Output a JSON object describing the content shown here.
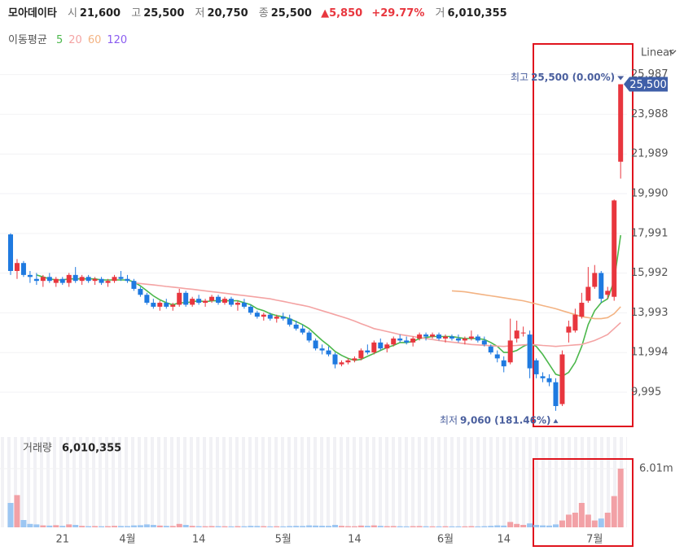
{
  "chart_data": {
    "type": "candlestick",
    "header": {
      "name": "모아데이타",
      "summary": [
        {
          "label": "시",
          "value": "21,600"
        },
        {
          "label": "고",
          "value": "25,500"
        },
        {
          "label": "저",
          "value": "20,750"
        },
        {
          "label": "종",
          "value": "25,500"
        }
      ],
      "change": "▲5,850",
      "change_pct": "+29.77%",
      "volume_summary": {
        "label": "거",
        "value": "6,010,355"
      }
    },
    "ma_label": "이동평균",
    "scale_label": "Linear",
    "last_price_label": "25,500",
    "high_annotation": {
      "label": "최고",
      "text": "25,500 (0.00%)"
    },
    "low_annotation": {
      "label": "최저",
      "text": "9,060 (181.46%)"
    },
    "up_color": "#e8363e",
    "down_color": "#1f7ae0",
    "volume_up_color": "#f2a1a6",
    "volume_down_color": "#9cc6f2",
    "grid": true,
    "categories": [
      null,
      null,
      null,
      null,
      null,
      null,
      null,
      null,
      "21",
      null,
      null,
      null,
      null,
      null,
      null,
      null,
      null,
      null,
      "4월",
      null,
      null,
      null,
      null,
      null,
      null,
      null,
      null,
      null,
      null,
      "14",
      null,
      null,
      null,
      null,
      null,
      null,
      null,
      null,
      null,
      null,
      null,
      null,
      "5월",
      null,
      null,
      null,
      null,
      null,
      null,
      null,
      null,
      null,
      null,
      "14",
      null,
      null,
      null,
      null,
      null,
      null,
      null,
      null,
      null,
      null,
      null,
      null,
      null,
      "6월",
      null,
      null,
      null,
      null,
      null,
      null,
      null,
      null,
      "14",
      null,
      null,
      null,
      null,
      null,
      null,
      null,
      null,
      null,
      null,
      null,
      null,
      null,
      "7월",
      null,
      null,
      null,
      null
    ],
    "ylim": [
      8234,
      26463
    ],
    "yticks": [
      {
        "value": 25987,
        "label": "25,987"
      },
      {
        "value": 23988,
        "label": "23,988"
      },
      {
        "value": 21989,
        "label": "21,989"
      },
      {
        "value": 19990,
        "label": "19,990"
      },
      {
        "value": 17991,
        "label": "17,991"
      },
      {
        "value": 15992,
        "label": "15,992"
      },
      {
        "value": 13993,
        "label": "13,993"
      },
      {
        "value": 11994,
        "label": "11,994"
      },
      {
        "value": 9995,
        "label": "9,995"
      }
    ],
    "ohlc": [
      [
        17940,
        18000,
        15900,
        16100
      ],
      [
        16100,
        16700,
        15700,
        16500
      ],
      [
        16500,
        16600,
        15800,
        15900
      ],
      [
        15900,
        16100,
        15500,
        15800
      ],
      [
        15700,
        16000,
        15400,
        15600
      ],
      [
        15600,
        15900,
        15300,
        15800
      ],
      [
        15800,
        16000,
        15500,
        15600
      ],
      [
        15500,
        15800,
        15300,
        15700
      ],
      [
        15700,
        15800,
        15400,
        15500
      ],
      [
        15500,
        16000,
        15300,
        15900
      ],
      [
        15900,
        16300,
        15500,
        15600
      ],
      [
        15600,
        15900,
        15400,
        15800
      ],
      [
        15800,
        15900,
        15500,
        15600
      ],
      [
        15600,
        15800,
        15400,
        15700
      ],
      [
        15700,
        15800,
        15400,
        15500
      ],
      [
        15500,
        15700,
        15300,
        15600
      ],
      [
        15600,
        15900,
        15500,
        15800
      ],
      [
        15800,
        16100,
        15600,
        15700
      ],
      [
        15700,
        15900,
        15500,
        15600
      ],
      [
        15600,
        15700,
        15100,
        15200
      ],
      [
        15200,
        15300,
        14800,
        14900
      ],
      [
        14900,
        15000,
        14400,
        14500
      ],
      [
        14500,
        14700,
        14200,
        14300
      ],
      [
        14300,
        14600,
        14100,
        14500
      ],
      [
        14500,
        14700,
        14200,
        14300
      ],
      [
        14300,
        14500,
        14100,
        14400
      ],
      [
        14400,
        15200,
        14300,
        15000
      ],
      [
        15000,
        15100,
        14300,
        14400
      ],
      [
        14400,
        14800,
        14300,
        14700
      ],
      [
        14700,
        14900,
        14400,
        14500
      ],
      [
        14500,
        14700,
        14300,
        14600
      ],
      [
        14600,
        14900,
        14500,
        14800
      ],
      [
        14800,
        14900,
        14400,
        14500
      ],
      [
        14500,
        14800,
        14400,
        14700
      ],
      [
        14700,
        14800,
        14300,
        14400
      ],
      [
        14400,
        14600,
        14100,
        14500
      ],
      [
        14500,
        14700,
        14200,
        14300
      ],
      [
        14300,
        14400,
        13900,
        14000
      ],
      [
        14000,
        14100,
        13700,
        13800
      ],
      [
        13800,
        14000,
        13600,
        13900
      ],
      [
        13900,
        14000,
        13600,
        13700
      ],
      [
        13700,
        13900,
        13500,
        13800
      ],
      [
        13800,
        14000,
        13600,
        13700
      ],
      [
        13700,
        13900,
        13300,
        13400
      ],
      [
        13400,
        13600,
        13100,
        13200
      ],
      [
        13200,
        13400,
        12900,
        13000
      ],
      [
        13000,
        13100,
        12500,
        12600
      ],
      [
        12600,
        12700,
        12100,
        12200
      ],
      [
        12200,
        12400,
        11900,
        12100
      ],
      [
        12100,
        12300,
        11800,
        11900
      ],
      [
        11900,
        12000,
        11200,
        11400
      ],
      [
        11400,
        11600,
        11300,
        11500
      ],
      [
        11500,
        11700,
        11400,
        11600
      ],
      [
        11600,
        11800,
        11500,
        11700
      ],
      [
        11700,
        12200,
        11600,
        12100
      ],
      [
        12100,
        12400,
        11900,
        12000
      ],
      [
        12000,
        12600,
        11900,
        12500
      ],
      [
        12500,
        12700,
        12100,
        12200
      ],
      [
        12200,
        12500,
        12000,
        12400
      ],
      [
        12400,
        12800,
        12300,
        12700
      ],
      [
        12700,
        12900,
        12500,
        12600
      ],
      [
        12600,
        12800,
        12400,
        12500
      ],
      [
        12500,
        12800,
        12300,
        12700
      ],
      [
        12700,
        13000,
        12600,
        12900
      ],
      [
        12900,
        13000,
        12600,
        12800
      ],
      [
        12800,
        13000,
        12700,
        12900
      ],
      [
        12900,
        13000,
        12600,
        12700
      ],
      [
        12700,
        12900,
        12500,
        12800
      ],
      [
        12800,
        12900,
        12600,
        12700
      ],
      [
        12700,
        12900,
        12500,
        12600
      ],
      [
        12600,
        12800,
        12400,
        12700
      ],
      [
        12700,
        13100,
        12600,
        12800
      ],
      [
        12800,
        12900,
        12500,
        12600
      ],
      [
        12600,
        12800,
        12300,
        12400
      ],
      [
        12300,
        12400,
        11900,
        12000
      ],
      [
        11900,
        12100,
        11500,
        11700
      ],
      [
        11600,
        11800,
        11000,
        11300
      ],
      [
        11500,
        13700,
        11400,
        12600
      ],
      [
        12700,
        13600,
        12500,
        13100
      ],
      [
        13000,
        13300,
        12800,
        13000
      ],
      [
        12900,
        13100,
        10700,
        11200
      ],
      [
        11600,
        11700,
        10700,
        10900
      ],
      [
        10800,
        11000,
        10500,
        10700
      ],
      [
        10700,
        10900,
        10300,
        10500
      ],
      [
        10500,
        10700,
        9060,
        9300
      ],
      [
        9400,
        12100,
        9300,
        11900
      ],
      [
        13000,
        13600,
        12500,
        13300
      ],
      [
        13100,
        14200,
        13000,
        13900
      ],
      [
        13800,
        15000,
        13700,
        14500
      ],
      [
        14600,
        16300,
        14500,
        15300
      ],
      [
        15300,
        16400,
        15200,
        16000
      ],
      [
        16000,
        16100,
        14500,
        14700
      ],
      [
        14900,
        15300,
        14700,
        15100
      ],
      [
        14800,
        19700,
        14600,
        19650
      ],
      [
        21600,
        25500,
        20750,
        25500
      ]
    ],
    "moving_averages": [
      {
        "name": "5",
        "color": "#4cb84c",
        "values": [
          null,
          null,
          null,
          null,
          15900,
          15800,
          15700,
          15650,
          15650,
          15700,
          15700,
          15700,
          15700,
          15700,
          15650,
          15650,
          15650,
          15650,
          15650,
          15550,
          15350,
          15100,
          14850,
          14650,
          14500,
          14400,
          14500,
          14500,
          14550,
          14600,
          14550,
          14600,
          14600,
          14600,
          14600,
          14600,
          14500,
          14400,
          14200,
          14100,
          13950,
          13850,
          13800,
          13700,
          13550,
          13400,
          13200,
          12900,
          12600,
          12350,
          12050,
          11850,
          11700,
          11600,
          11650,
          11800,
          11950,
          12100,
          12250,
          12350,
          12500,
          12500,
          12550,
          12700,
          12750,
          12800,
          12800,
          12800,
          12800,
          12750,
          12700,
          12700,
          12700,
          12650,
          12500,
          12300,
          12000,
          12000,
          12100,
          12300,
          12450,
          12300,
          11900,
          11400,
          10900,
          10800,
          11000,
          11500,
          12300,
          13400,
          14100,
          14500,
          14700,
          15600,
          17900
        ]
      },
      {
        "name": "20",
        "color": "#f4a3a3",
        "values": [
          null,
          null,
          null,
          null,
          null,
          null,
          null,
          null,
          null,
          null,
          null,
          null,
          null,
          null,
          null,
          null,
          null,
          null,
          null,
          15500,
          15470,
          15430,
          15400,
          15360,
          15320,
          15290,
          15250,
          15210,
          15180,
          15140,
          15100,
          15060,
          15020,
          14980,
          14940,
          14900,
          14860,
          14820,
          14780,
          14740,
          14700,
          14630,
          14570,
          14500,
          14430,
          14370,
          14300,
          14200,
          14100,
          14000,
          13900,
          13800,
          13700,
          13580,
          13450,
          13330,
          13200,
          13130,
          13050,
          12980,
          12900,
          12850,
          12800,
          12750,
          12700,
          12650,
          12600,
          12560,
          12520,
          12480,
          12440,
          12400,
          12380,
          12360,
          12340,
          12320,
          12300,
          12330,
          12350,
          12380,
          12400,
          12380,
          12350,
          12330,
          12300,
          12330,
          12350,
          12380,
          12400,
          12500,
          12600,
          12750,
          12900,
          13200,
          13500
        ]
      },
      {
        "name": "60",
        "color": "#f3b383",
        "values": [
          null,
          null,
          null,
          null,
          null,
          null,
          null,
          null,
          null,
          null,
          null,
          null,
          null,
          null,
          null,
          null,
          null,
          null,
          null,
          null,
          null,
          null,
          null,
          null,
          null,
          null,
          null,
          null,
          null,
          null,
          null,
          null,
          null,
          null,
          null,
          null,
          null,
          null,
          null,
          null,
          null,
          null,
          null,
          null,
          null,
          null,
          null,
          null,
          null,
          null,
          null,
          null,
          null,
          null,
          null,
          null,
          null,
          null,
          null,
          null,
          null,
          null,
          null,
          null,
          null,
          null,
          null,
          null,
          15100,
          15080,
          15050,
          15000,
          14950,
          14900,
          14850,
          14800,
          14750,
          14700,
          14650,
          14600,
          14520,
          14440,
          14360,
          14280,
          14200,
          14100,
          14000,
          13900,
          13800,
          13750,
          13700,
          13700,
          13750,
          13950,
          14300
        ]
      },
      {
        "name": "120",
        "color": "#8a5cf0"
      }
    ],
    "volume_title": "거래량",
    "volume_total": "6,010,355",
    "volume_ylim": [
      0,
      9000000
    ],
    "volume_yticks": [
      {
        "value": 6010355,
        "label": "6.01m"
      }
    ],
    "volume": [
      2500000,
      3300000,
      750000,
      350000,
      300000,
      200000,
      180000,
      220000,
      150000,
      300000,
      250000,
      150000,
      120000,
      130000,
      110000,
      120000,
      150000,
      140000,
      130000,
      200000,
      220000,
      300000,
      250000,
      180000,
      150000,
      140000,
      350000,
      250000,
      150000,
      120000,
      110000,
      130000,
      120000,
      110000,
      100000,
      120000,
      110000,
      150000,
      140000,
      120000,
      100000,
      110000,
      100000,
      130000,
      150000,
      140000,
      200000,
      180000,
      160000,
      150000,
      250000,
      150000,
      120000,
      110000,
      180000,
      150000,
      200000,
      150000,
      120000,
      130000,
      110000,
      100000,
      120000,
      130000,
      110000,
      100000,
      100000,
      110000,
      100000,
      100000,
      100000,
      120000,
      100000,
      120000,
      150000,
      200000,
      180000,
      550000,
      350000,
      250000,
      400000,
      250000,
      200000,
      180000,
      300000,
      700000,
      1300000,
      1500000,
      2500000,
      1300000,
      700000,
      900000,
      1500000,
      3200000,
      6010355
    ]
  }
}
